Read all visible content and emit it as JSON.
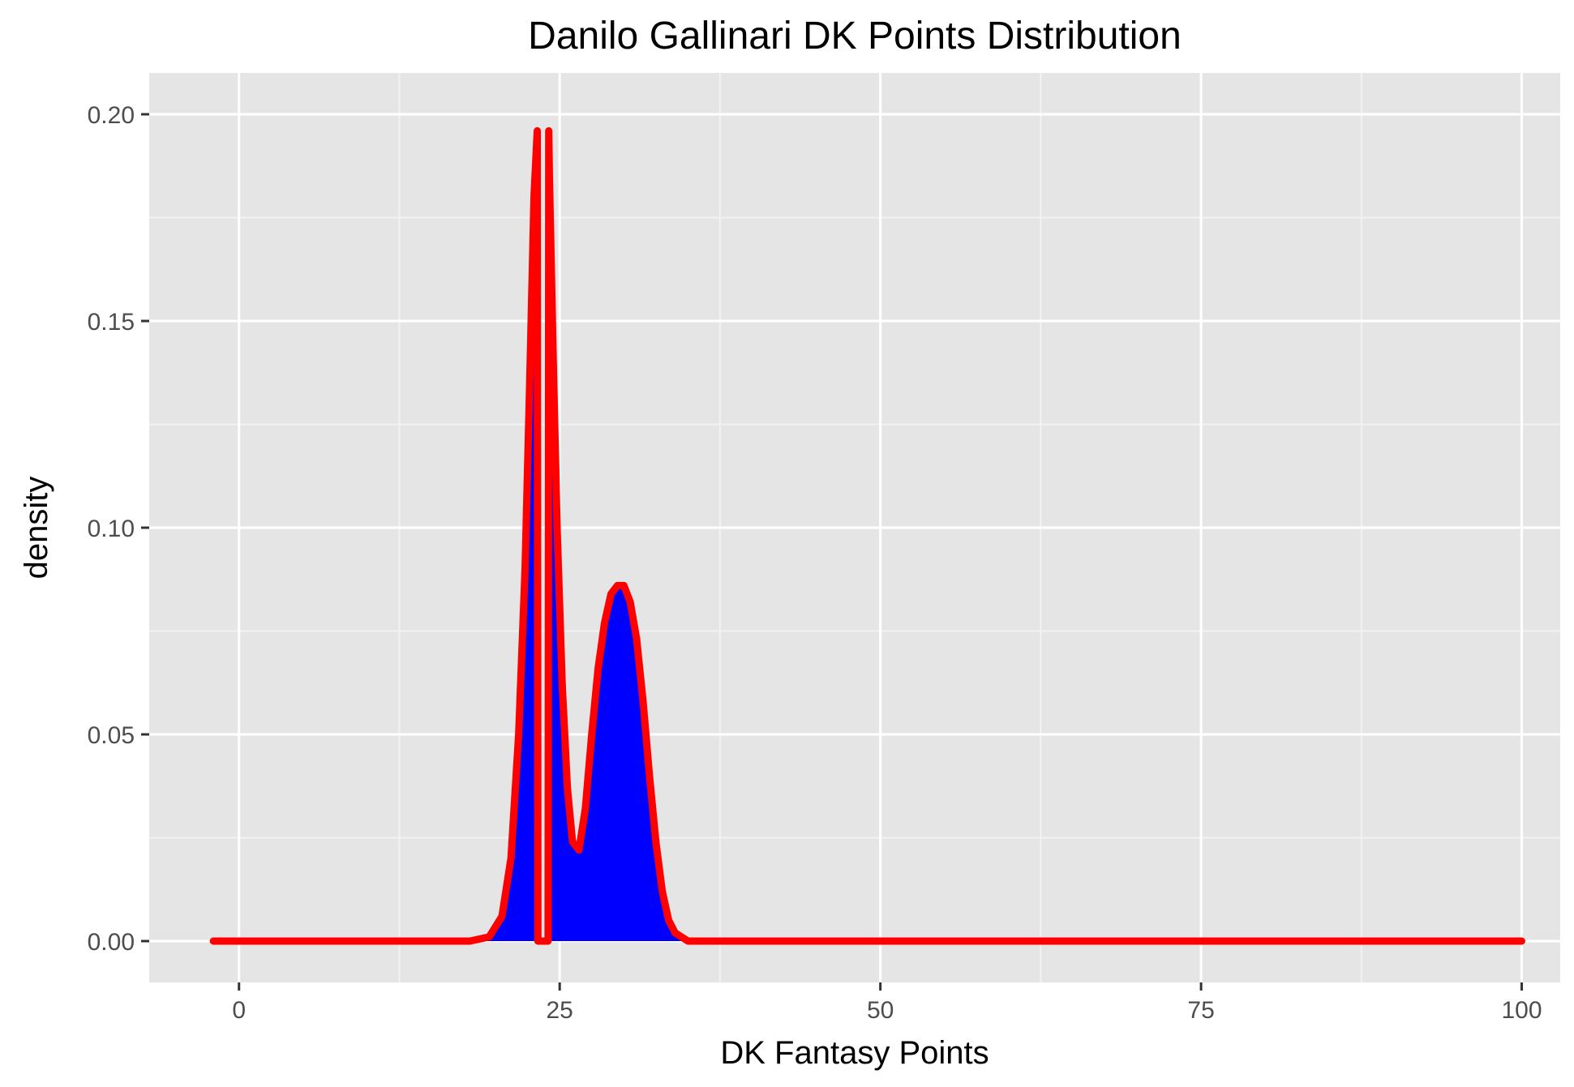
{
  "chart_data": {
    "type": "area",
    "title": "Danilo Gallinari DK Points Distribution",
    "xlabel": "DK Fantasy Points",
    "ylabel": "density",
    "xlim": [
      -7,
      103
    ],
    "ylim": [
      -0.01,
      0.21
    ],
    "x_ticks": [
      0,
      25,
      50,
      75,
      100
    ],
    "x_tick_labels": [
      "0",
      "25",
      "50",
      "75",
      "100"
    ],
    "y_ticks": [
      0,
      0.05,
      0.1,
      0.15,
      0.2
    ],
    "y_tick_labels": [
      "0.00",
      "0.05",
      "0.10",
      "0.15",
      "0.20"
    ],
    "grid": true,
    "legend": "none",
    "fill_color": "#0000FF",
    "line_color": "#FF0000",
    "panel_color": "#E5E5E5",
    "x": [
      -2,
      18,
      19.5,
      20.5,
      21.2,
      21.8,
      22.3,
      22.7,
      23.0,
      23.25,
      23.3,
      23.35,
      23.6,
      23.85,
      24.1,
      24.15,
      24.2,
      24.5,
      24.8,
      25.2,
      25.6,
      26.0,
      26.5,
      27.0,
      27.5,
      28.0,
      28.5,
      29.0,
      29.5,
      30.0,
      30.5,
      31.0,
      31.5,
      32.0,
      32.5,
      33.0,
      33.5,
      34.0,
      34.5,
      35.0,
      36.0,
      100
    ],
    "y": [
      0,
      0,
      0.001,
      0.006,
      0.02,
      0.05,
      0.09,
      0.14,
      0.18,
      0.196,
      0.0,
      0.0,
      0.0,
      0.0,
      0.0,
      0.196,
      0.185,
      0.14,
      0.1,
      0.062,
      0.037,
      0.024,
      0.022,
      0.032,
      0.05,
      0.066,
      0.077,
      0.084,
      0.086,
      0.086,
      0.082,
      0.073,
      0.058,
      0.04,
      0.024,
      0.012,
      0.005,
      0.002,
      0.001,
      0,
      0,
      0
    ]
  }
}
